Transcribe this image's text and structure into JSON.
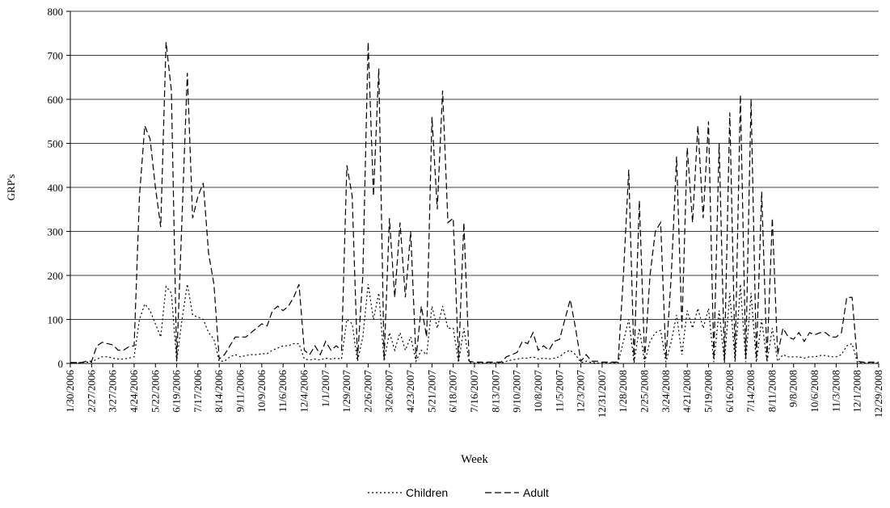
{
  "chart_data": {
    "type": "line",
    "x_label": "Week",
    "y_label": "GRP's",
    "categories": [
      "1/30/2006",
      null,
      null,
      null,
      "2/27/2006",
      null,
      null,
      null,
      "3/27/2006",
      null,
      null,
      null,
      "4/24/2006",
      null,
      null,
      null,
      "5/22/2006",
      null,
      null,
      null,
      "6/19/2006",
      null,
      null,
      null,
      "7/17/2006",
      null,
      null,
      null,
      "8/14/2006",
      null,
      null,
      null,
      "9/11/2006",
      null,
      null,
      null,
      "10/9/2006",
      null,
      null,
      null,
      "11/6/2006",
      null,
      null,
      null,
      "12/4/2006",
      null,
      null,
      null,
      "1/1/2007",
      null,
      null,
      null,
      "1/29/2007",
      null,
      null,
      null,
      "2/26/2007",
      null,
      null,
      null,
      "3/26/2007",
      null,
      null,
      null,
      "4/23/2007",
      null,
      null,
      null,
      "5/21/2007",
      null,
      null,
      null,
      "6/18/2007",
      null,
      null,
      null,
      "7/16/2007",
      null,
      null,
      null,
      "8/13/2007",
      null,
      null,
      null,
      "9/10/2007",
      null,
      null,
      null,
      "10/8/2007",
      null,
      null,
      null,
      "11/5/2007",
      null,
      null,
      null,
      "12/3/2007",
      null,
      null,
      null,
      "12/31/2007",
      null,
      null,
      null,
      "1/28/2008",
      null,
      null,
      null,
      "2/25/2008",
      null,
      null,
      null,
      "3/24/2008",
      null,
      null,
      null,
      "4/21/2008",
      null,
      null,
      null,
      "5/19/2008",
      null,
      null,
      null,
      "6/16/2008",
      null,
      null,
      null,
      "7/14/2008",
      null,
      null,
      null,
      "8/11/2008",
      null,
      null,
      null,
      "9/8/2008",
      null,
      null,
      null,
      "10/6/2008",
      null,
      null,
      null,
      "11/3/2008",
      null,
      null,
      null,
      "12/1/2008",
      null,
      null,
      null,
      "12/29/2008"
    ],
    "series": [
      {
        "name": "Children",
        "color": "#000000",
        "dash": "2,3",
        "values": [
          1,
          1,
          2,
          3,
          3,
          10,
          15,
          15,
          12,
          10,
          10,
          12,
          15,
          100,
          135,
          120,
          90,
          60,
          175,
          160,
          5,
          100,
          180,
          110,
          105,
          100,
          70,
          55,
          5,
          5,
          15,
          20,
          15,
          18,
          20,
          20,
          22,
          22,
          30,
          35,
          40,
          40,
          45,
          45,
          10,
          8,
          10,
          8,
          12,
          10,
          12,
          10,
          100,
          90,
          5,
          60,
          180,
          100,
          160,
          5,
          70,
          30,
          70,
          30,
          60,
          5,
          30,
          20,
          130,
          80,
          130,
          80,
          80,
          2,
          80,
          2,
          1,
          1,
          1,
          1,
          1,
          1,
          5,
          8,
          10,
          12,
          12,
          15,
          10,
          12,
          10,
          12,
          15,
          25,
          30,
          20,
          2,
          5,
          2,
          1,
          1,
          1,
          1,
          1,
          50,
          100,
          2,
          80,
          3,
          50,
          70,
          75,
          3,
          50,
          110,
          20,
          120,
          80,
          125,
          80,
          125,
          3,
          120,
          2,
          160,
          3,
          180,
          3,
          160,
          3,
          100,
          3,
          80,
          5,
          20,
          15,
          15,
          15,
          12,
          15,
          15,
          18,
          18,
          15,
          15,
          20,
          40,
          45,
          2,
          1,
          1,
          1,
          1
        ]
      },
      {
        "name": "Adult",
        "color": "#000000",
        "dash": "8,4",
        "values": [
          2,
          2,
          2,
          5,
          5,
          40,
          48,
          45,
          42,
          30,
          30,
          38,
          40,
          380,
          540,
          510,
          400,
          310,
          730,
          620,
          5,
          330,
          660,
          330,
          380,
          410,
          250,
          180,
          10,
          20,
          40,
          60,
          60,
          60,
          70,
          80,
          90,
          85,
          120,
          130,
          120,
          130,
          150,
          180,
          30,
          20,
          40,
          20,
          50,
          30,
          40,
          30,
          450,
          380,
          10,
          200,
          730,
          380,
          670,
          10,
          330,
          150,
          320,
          150,
          300,
          10,
          130,
          60,
          560,
          350,
          620,
          320,
          330,
          5,
          320,
          5,
          3,
          3,
          3,
          3,
          3,
          3,
          15,
          20,
          25,
          50,
          45,
          70,
          30,
          40,
          30,
          50,
          55,
          100,
          145,
          80,
          5,
          20,
          5,
          5,
          3,
          3,
          3,
          3,
          200,
          440,
          5,
          370,
          10,
          200,
          300,
          320,
          10,
          200,
          470,
          80,
          490,
          320,
          540,
          330,
          550,
          10,
          500,
          5,
          570,
          10,
          610,
          10,
          600,
          10,
          390,
          10,
          330,
          20,
          80,
          60,
          55,
          70,
          50,
          70,
          65,
          70,
          70,
          60,
          60,
          70,
          150,
          150,
          5,
          3,
          3,
          3,
          3
        ]
      }
    ],
    "ylim": [
      0,
      800
    ],
    "yticks": [
      0,
      100,
      200,
      300,
      400,
      500,
      600,
      700,
      800
    ],
    "grid": true,
    "legend": "bottom"
  }
}
